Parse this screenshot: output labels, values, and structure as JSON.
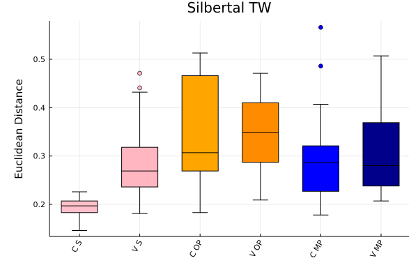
{
  "chart_data": {
    "type": "box",
    "title": "Silbertal TW",
    "xlabel": "",
    "ylabel": "Euclidean Distance",
    "ylim": [
      0.135,
      0.58
    ],
    "yticks": [
      0.2,
      0.3,
      0.4,
      0.5
    ],
    "ytick_labels": [
      "0.2",
      "0.3",
      "0.4",
      "0.5"
    ],
    "grid": true,
    "legend": "none",
    "categories": [
      "C S",
      "V S",
      "C OP",
      "V OP",
      "C MP",
      "V MP"
    ],
    "boxes": [
      {
        "label": "C S",
        "whisker_low": 0.146,
        "q1": 0.183,
        "median": 0.197,
        "q3": 0.207,
        "whisker_high": 0.226,
        "outliers": [],
        "fill": "#ffc0cb",
        "outlier_color": "#ffc0cb"
      },
      {
        "label": "V S",
        "whisker_low": 0.181,
        "q1": 0.236,
        "median": 0.269,
        "q3": 0.318,
        "whisker_high": 0.432,
        "outliers": [
          0.441,
          0.471
        ],
        "fill": "#ffb6c1",
        "outlier_color": "#ffb6c1"
      },
      {
        "label": "C OP",
        "whisker_low": 0.183,
        "q1": 0.269,
        "median": 0.307,
        "q3": 0.466,
        "whisker_high": 0.513,
        "outliers": [],
        "fill": "#ffa500",
        "outlier_color": "#ffa500"
      },
      {
        "label": "V OP",
        "whisker_low": 0.209,
        "q1": 0.287,
        "median": 0.349,
        "q3": 0.41,
        "whisker_high": 0.471,
        "outliers": [],
        "fill": "#ff8c00",
        "outlier_color": "#ff8c00"
      },
      {
        "label": "C MP",
        "whisker_low": 0.178,
        "q1": 0.227,
        "median": 0.286,
        "q3": 0.321,
        "whisker_high": 0.407,
        "outliers": [
          0.486,
          0.566
        ],
        "fill": "#0000ff",
        "outlier_color": "#0000ff"
      },
      {
        "label": "V MP",
        "whisker_low": 0.207,
        "q1": 0.238,
        "median": 0.28,
        "q3": 0.369,
        "whisker_high": 0.507,
        "outliers": [],
        "fill": "#00008b",
        "outlier_color": "#00008b"
      }
    ]
  }
}
